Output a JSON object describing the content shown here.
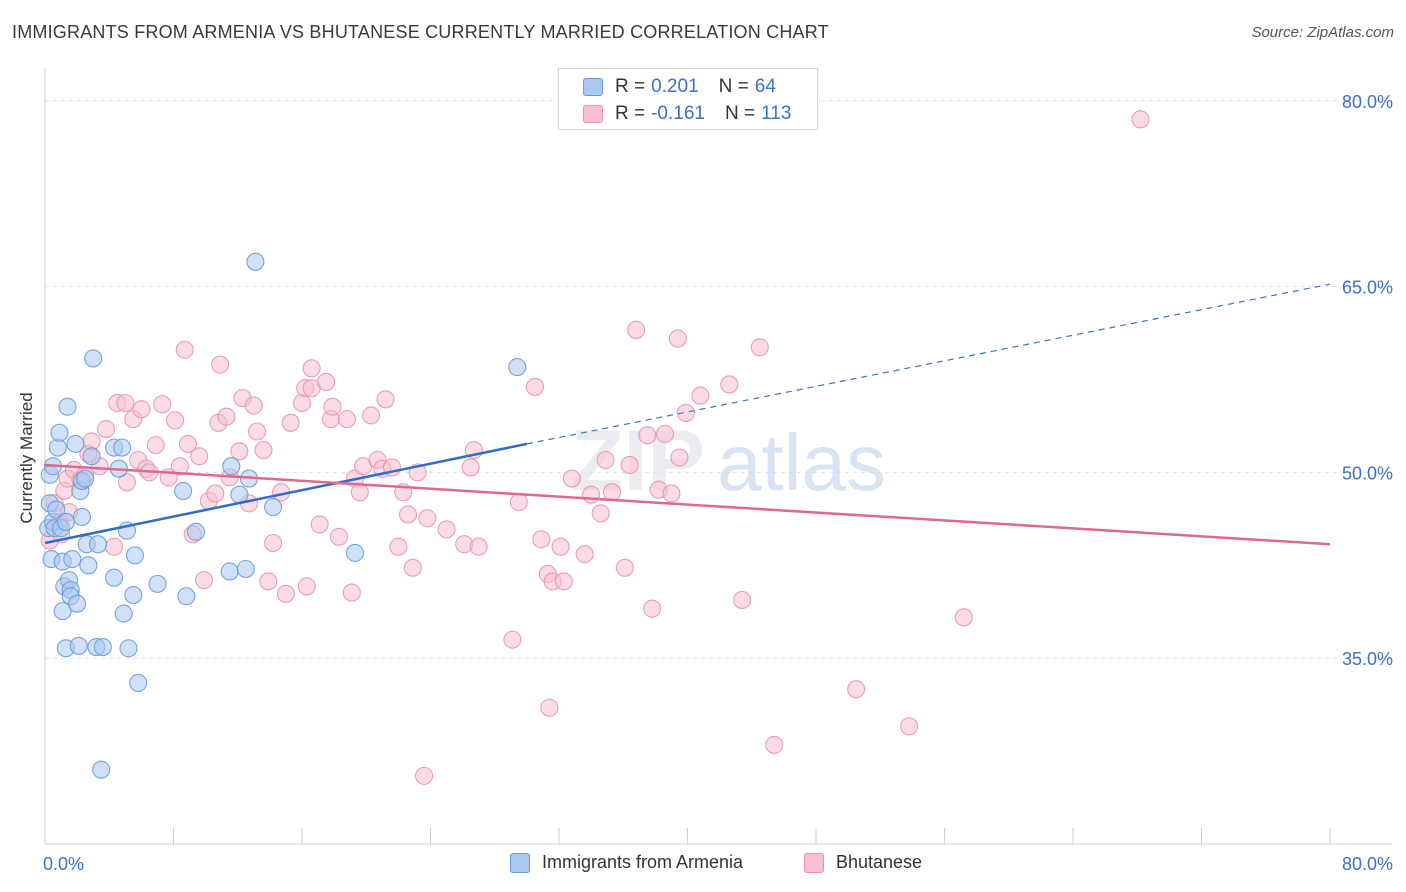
{
  "title": "IMMIGRANTS FROM ARMENIA VS BHUTANESE CURRENTLY MARRIED CORRELATION CHART",
  "source": "Source: ZipAtlas.com",
  "watermark": {
    "zip": "ZIP",
    "atlas": "atlas"
  },
  "legend": {
    "r_label": "R =",
    "n_label": "N =",
    "rows": [
      {
        "r": "0.201",
        "n": "64",
        "fill": "#a9c8f0",
        "stroke": "#6b9ad8"
      },
      {
        "r": "-0.161",
        "n": "113",
        "fill": "#f8bfd0",
        "stroke": "#e893ad"
      }
    ]
  },
  "bottom_legend": [
    "Immigrants from Armenia",
    "Bhutanese"
  ],
  "chart_data": {
    "type": "scatter",
    "title": "IMMIGRANTS FROM ARMENIA VS BHUTANESE CURRENTLY MARRIED CORRELATION CHART",
    "xlabel": "",
    "ylabel": "Currently Married",
    "xlim": [
      0,
      80
    ],
    "ylim": [
      20,
      82
    ],
    "x_tick_labels": [
      "0.0%",
      "80.0%"
    ],
    "y_ticks": [
      35,
      50,
      65,
      80
    ],
    "y_tick_labels": [
      "35.0%",
      "50.0%",
      "65.0%",
      "80.0%"
    ],
    "grid": true,
    "legend_position": "top-center",
    "series": [
      {
        "name": "Immigrants from Armenia",
        "color": "#6b9ad8",
        "fill": "#a9c8f0",
        "trend": {
          "x": [
            0,
            30
          ],
          "y": [
            44.3,
            52.3
          ],
          "dashed_to": [
            80,
            65.2
          ]
        },
        "points": [
          [
            0.2,
            45.5
          ],
          [
            0.3,
            47.5
          ],
          [
            0.3,
            49.8
          ],
          [
            0.4,
            43
          ],
          [
            0.5,
            46
          ],
          [
            0.5,
            50.5
          ],
          [
            0.6,
            45.5
          ],
          [
            0.7,
            47
          ],
          [
            0.8,
            52
          ],
          [
            0.9,
            53.2
          ],
          [
            1.0,
            45.5
          ],
          [
            1.1,
            42.8
          ],
          [
            1.1,
            38.8
          ],
          [
            1.2,
            40.8
          ],
          [
            1.3,
            46
          ],
          [
            1.3,
            35.8
          ],
          [
            1.4,
            55.3
          ],
          [
            1.5,
            41.3
          ],
          [
            1.6,
            40.5
          ],
          [
            1.6,
            40
          ],
          [
            1.7,
            43
          ],
          [
            1.9,
            52.3
          ],
          [
            2.0,
            39.4
          ],
          [
            2.1,
            36
          ],
          [
            2.2,
            48.5
          ],
          [
            2.3,
            49.3
          ],
          [
            2.3,
            46.4
          ],
          [
            2.5,
            49.5
          ],
          [
            2.6,
            44.2
          ],
          [
            2.7,
            42.5
          ],
          [
            2.9,
            51.3
          ],
          [
            3.0,
            59.2
          ],
          [
            3.2,
            35.9
          ],
          [
            3.3,
            44.2
          ],
          [
            3.5,
            26
          ],
          [
            3.6,
            35.9
          ],
          [
            4.3,
            52
          ],
          [
            4.3,
            41.5
          ],
          [
            4.6,
            50.3
          ],
          [
            4.8,
            52
          ],
          [
            4.9,
            38.6
          ],
          [
            5.1,
            45.3
          ],
          [
            5.2,
            35.8
          ],
          [
            5.5,
            40.1
          ],
          [
            5.6,
            43.3
          ],
          [
            5.8,
            33
          ],
          [
            7.0,
            41
          ],
          [
            8.6,
            48.5
          ],
          [
            8.8,
            40
          ],
          [
            9.4,
            45.2
          ],
          [
            11.5,
            42
          ],
          [
            11.6,
            50.5
          ],
          [
            12.1,
            48.2
          ],
          [
            12.5,
            42.2
          ],
          [
            12.7,
            49.5
          ],
          [
            13.1,
            67
          ],
          [
            14.2,
            47.2
          ],
          [
            19.3,
            43.5
          ],
          [
            29.4,
            58.5
          ]
        ]
      },
      {
        "name": "Bhutanese",
        "color": "#e893ad",
        "fill": "#f8bfd0",
        "trend": {
          "x": [
            0,
            80
          ],
          "y": [
            50.6,
            44.2
          ]
        },
        "points": [
          [
            0.3,
            44.5
          ],
          [
            0.6,
            47.5
          ],
          [
            0.9,
            46
          ],
          [
            1.0,
            45
          ],
          [
            1.2,
            48.5
          ],
          [
            1.4,
            49.5
          ],
          [
            1.5,
            46.8
          ],
          [
            1.8,
            50.2
          ],
          [
            2.2,
            49.4
          ],
          [
            2.5,
            49.8
          ],
          [
            2.7,
            51.5
          ],
          [
            2.9,
            52.5
          ],
          [
            3.4,
            50.5
          ],
          [
            3.8,
            53.5
          ],
          [
            4.3,
            44
          ],
          [
            4.5,
            55.6
          ],
          [
            5.0,
            55.6
          ],
          [
            5.1,
            49.2
          ],
          [
            5.5,
            54.3
          ],
          [
            5.8,
            51
          ],
          [
            6.0,
            55.1
          ],
          [
            6.3,
            50.3
          ],
          [
            6.5,
            50
          ],
          [
            6.9,
            52.2
          ],
          [
            7.3,
            55.5
          ],
          [
            7.7,
            49.6
          ],
          [
            8.1,
            54.2
          ],
          [
            8.4,
            50.5
          ],
          [
            8.7,
            59.9
          ],
          [
            8.9,
            52.3
          ],
          [
            9.2,
            45
          ],
          [
            9.6,
            51.3
          ],
          [
            9.9,
            41.3
          ],
          [
            10.2,
            47.7
          ],
          [
            10.6,
            48.3
          ],
          [
            10.9,
            58.7
          ],
          [
            10.8,
            54
          ],
          [
            11.3,
            54.5
          ],
          [
            11.5,
            49.6
          ],
          [
            12.1,
            51.7
          ],
          [
            12.3,
            56
          ],
          [
            12.7,
            47.5
          ],
          [
            13.0,
            55.4
          ],
          [
            13.2,
            53.3
          ],
          [
            13.6,
            51.8
          ],
          [
            13.9,
            41.2
          ],
          [
            14.2,
            44.3
          ],
          [
            14.7,
            48.4
          ],
          [
            15.0,
            40.2
          ],
          [
            15.3,
            54
          ],
          [
            16.0,
            55.6
          ],
          [
            16.3,
            40.8
          ],
          [
            16.2,
            56.8
          ],
          [
            16.6,
            56.8
          ],
          [
            16.6,
            58.4
          ],
          [
            17.1,
            45.8
          ],
          [
            17.5,
            57.3
          ],
          [
            17.8,
            54.3
          ],
          [
            17.9,
            55.3
          ],
          [
            18.3,
            44.8
          ],
          [
            18.8,
            54.3
          ],
          [
            19.1,
            40.3
          ],
          [
            19.3,
            49.5
          ],
          [
            19.6,
            48.4
          ],
          [
            19.8,
            50.5
          ],
          [
            20.3,
            54.6
          ],
          [
            20.7,
            51
          ],
          [
            21.0,
            50.3
          ],
          [
            21.2,
            55.9
          ],
          [
            21.6,
            50.4
          ],
          [
            22.0,
            44
          ],
          [
            22.3,
            48.4
          ],
          [
            22.6,
            46.6
          ],
          [
            22.9,
            42.3
          ],
          [
            23.2,
            50
          ],
          [
            23.6,
            25.5
          ],
          [
            23.8,
            46.3
          ],
          [
            25.0,
            45.4
          ],
          [
            26.1,
            44.2
          ],
          [
            26.5,
            50.4
          ],
          [
            26.7,
            51.8
          ],
          [
            27.0,
            44
          ],
          [
            29.1,
            36.5
          ],
          [
            29.5,
            47.6
          ],
          [
            30.5,
            56.9
          ],
          [
            30.9,
            44.6
          ],
          [
            31.3,
            41.8
          ],
          [
            31.4,
            31
          ],
          [
            31.6,
            41.2
          ],
          [
            32.1,
            44
          ],
          [
            32.3,
            41.2
          ],
          [
            32.8,
            49.5
          ],
          [
            33.6,
            43.4
          ],
          [
            34.0,
            48.2
          ],
          [
            34.6,
            46.7
          ],
          [
            34.9,
            51
          ],
          [
            35.3,
            48.4
          ],
          [
            36.1,
            42.3
          ],
          [
            36.4,
            50.6
          ],
          [
            36.8,
            61.5
          ],
          [
            37.5,
            53
          ],
          [
            37.8,
            39
          ],
          [
            38.2,
            48.6
          ],
          [
            38.6,
            53.1
          ],
          [
            39.0,
            48.3
          ],
          [
            39.4,
            60.8
          ],
          [
            39.5,
            51.2
          ],
          [
            39.9,
            54.8
          ],
          [
            40.8,
            56.2
          ],
          [
            42.6,
            57.1
          ],
          [
            43.4,
            39.7
          ],
          [
            44.5,
            60.1
          ],
          [
            45.4,
            28
          ],
          [
            50.5,
            32.5
          ],
          [
            53.8,
            29.5
          ],
          [
            57.2,
            38.3
          ],
          [
            68.2,
            78.5
          ]
        ]
      }
    ]
  }
}
